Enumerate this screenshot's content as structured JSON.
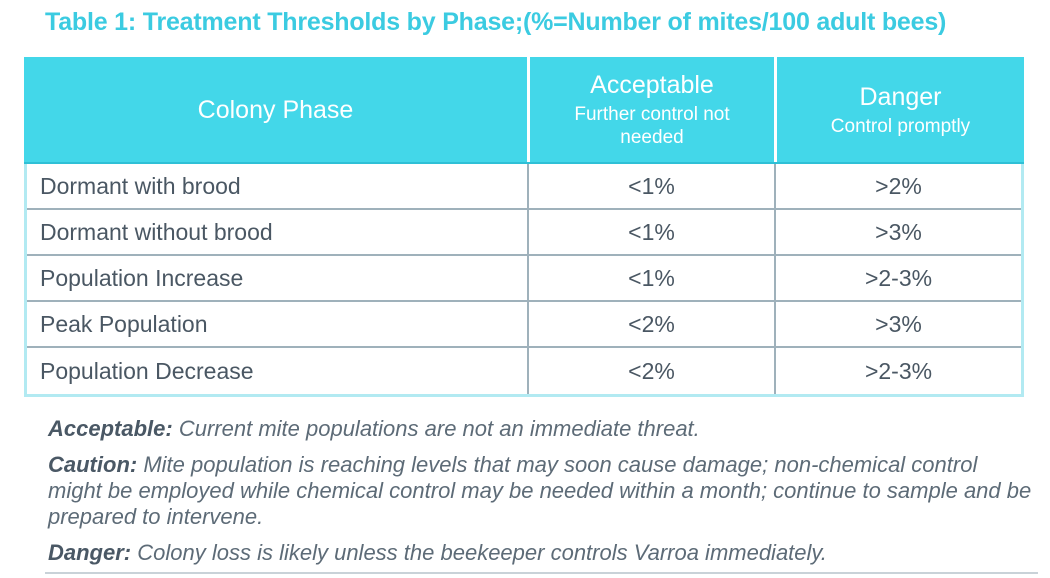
{
  "title": "Table 1: Treatment Thresholds by Phase;(%=Number of mites/100 adult bees)",
  "table": {
    "columns": [
      {
        "label": "Colony Phase",
        "sublabel": ""
      },
      {
        "label": "Acceptable",
        "sublabel": "Further control not needed"
      },
      {
        "label": "Danger",
        "sublabel": "Control promptly"
      }
    ],
    "rows": [
      {
        "phase": "Dormant with brood",
        "acceptable": "<1%",
        "danger": ">2%"
      },
      {
        "phase": "Dormant without brood",
        "acceptable": "<1%",
        "danger": ">3%"
      },
      {
        "phase": "Population Increase",
        "acceptable": "<1%",
        "danger": ">2-3%"
      },
      {
        "phase": "Peak Population",
        "acceptable": "<2%",
        "danger": ">3%"
      },
      {
        "phase": "Population Decrease",
        "acceptable": "<2%",
        "danger": ">2-3%"
      }
    ]
  },
  "notes": [
    {
      "term": "Acceptable:",
      "text": "Current mite populations are not an immediate threat."
    },
    {
      "term": "Caution:",
      "text": "Mite population is reaching levels that may soon cause damage; non-chemical control might be employed while chemical control may be needed within a month; continue to sample and be prepared to intervene."
    },
    {
      "term": "Danger:",
      "text": "Colony loss is likely unless the beekeeper controls Varroa immediately."
    }
  ],
  "colors": {
    "title_accent": "#3BCBE1",
    "header_background": "#43D7E9",
    "header_text": "#FFFFFF",
    "outer_border": "#B2EAF2",
    "gridline": "#9FB1BB",
    "body_text": "#4A5763",
    "note_text": "#5D6B77",
    "bottom_rule": "#C9D2D8"
  }
}
